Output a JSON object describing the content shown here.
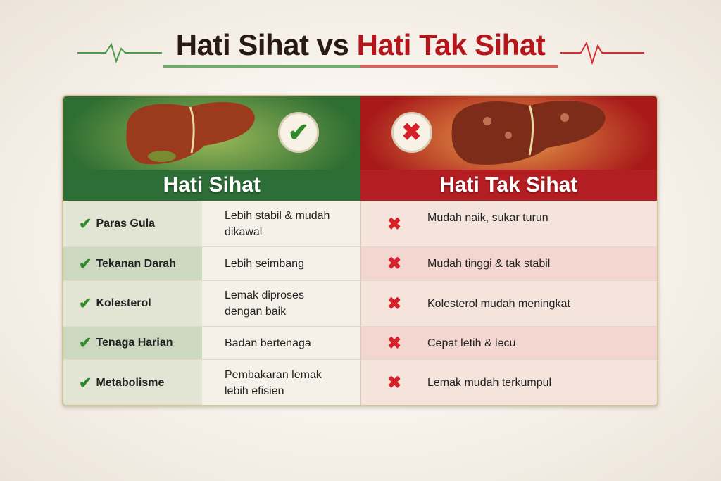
{
  "title": {
    "part1": "Hati Sihat vs ",
    "part2": "Hati Tak Sihat"
  },
  "colors": {
    "healthy": "#2d6d36",
    "unhealthy": "#b31e22",
    "check": "#2f8a2a",
    "cross": "#d6202a"
  },
  "headers": {
    "healthy": "Hati Sihat",
    "unhealthy": "Hati Tak Sihat"
  },
  "rows": [
    {
      "label": "Paras Gula",
      "healthy": "Lebih stabil & mudah dikawal",
      "unhealthy": "Mudah naik, sukar turun"
    },
    {
      "label": "Tekanan Darah",
      "healthy": "Lebih seimbang",
      "unhealthy": "Mudah tinggi & tak stabil"
    },
    {
      "label": "Kolesterol",
      "healthy": "Lemak diproses dengan baik",
      "unhealthy": "Kolesterol mudah meningkat"
    },
    {
      "label": "Tenaga Harian",
      "healthy": "Badan bertenaga",
      "unhealthy": "Cepat letih & lecu"
    },
    {
      "label": "Metabolisme",
      "healthy": "Pembakaran lemak lebih efisien",
      "unhealthy": "Lemak mudah terkumpul"
    }
  ],
  "icons": {
    "check": "check-icon",
    "cross": "cross-icon"
  }
}
